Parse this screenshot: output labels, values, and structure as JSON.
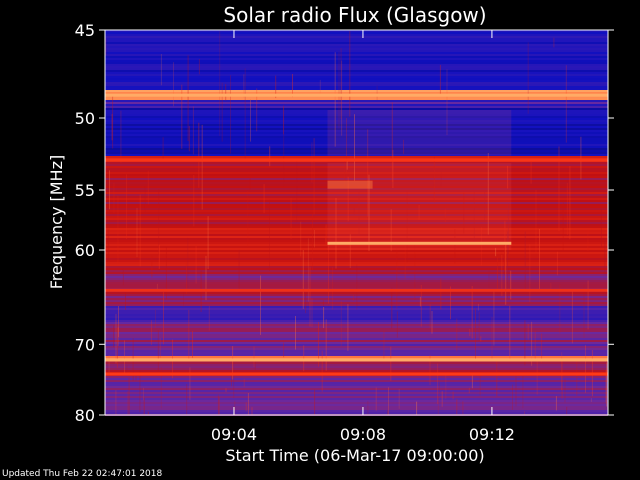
{
  "chart_data": {
    "type": "heatmap",
    "title": "Solar radio Flux (Glasgow)",
    "xlabel": "Start Time (06-Mar-17 09:00:00)",
    "ylabel": "Frequency [MHz]",
    "x_ticks": [
      {
        "label": "09:04",
        "minutes": 4
      },
      {
        "label": "09:08",
        "minutes": 8
      },
      {
        "label": "09:12",
        "minutes": 12
      }
    ],
    "xlim_minutes": [
      0,
      15.6
    ],
    "y_ticks": [
      45,
      50,
      55,
      60,
      70,
      80
    ],
    "ylim": [
      45,
      80
    ],
    "y_scale": "reciprocal",
    "colormap": [
      "#000000",
      "#1010c0",
      "#6a2aa0",
      "#c21010",
      "#ff3a18",
      "#ffd080"
    ],
    "bands": [
      {
        "f_start": 45.0,
        "f_end": 48.3,
        "level": 0.22,
        "var": 0.05
      },
      {
        "f_start": 48.3,
        "f_end": 48.9,
        "level": 0.92,
        "var": 0.03
      },
      {
        "f_start": 48.9,
        "f_end": 49.6,
        "level": 0.25,
        "var": 0.15
      },
      {
        "f_start": 49.6,
        "f_end": 52.5,
        "level": 0.2,
        "var": 0.04
      },
      {
        "f_start": 52.5,
        "f_end": 53.0,
        "level": 0.72,
        "var": 0.05
      },
      {
        "f_start": 53.0,
        "f_end": 58.0,
        "level": 0.58,
        "var": 0.08
      },
      {
        "f_start": 58.0,
        "f_end": 61.5,
        "level": 0.64,
        "var": 0.06
      },
      {
        "f_start": 61.5,
        "f_end": 65.5,
        "level": 0.5,
        "var": 0.09
      },
      {
        "f_start": 65.5,
        "f_end": 67.5,
        "level": 0.32,
        "var": 0.07
      },
      {
        "f_start": 67.5,
        "f_end": 71.5,
        "level": 0.44,
        "var": 0.1
      },
      {
        "f_start": 71.5,
        "f_end": 72.1,
        "level": 0.9,
        "var": 0.03
      },
      {
        "f_start": 72.1,
        "f_end": 73.5,
        "level": 0.5,
        "var": 0.08
      },
      {
        "f_start": 73.5,
        "f_end": 74.2,
        "level": 0.72,
        "var": 0.2
      },
      {
        "f_start": 74.2,
        "f_end": 80.0,
        "level": 0.4,
        "var": 0.08
      }
    ],
    "lines": [
      {
        "freq": 48.6,
        "level": 0.95,
        "t_start": 0,
        "t_end": 15.6
      },
      {
        "freq": 52.8,
        "level": 0.78,
        "t_start": 0,
        "t_end": 15.6
      },
      {
        "freq": 59.4,
        "level": 0.95,
        "t_start": 6.9,
        "t_end": 12.6
      },
      {
        "freq": 63.9,
        "level": 0.75,
        "t_start": 0,
        "t_end": 15.6
      },
      {
        "freq": 72.0,
        "level": 0.95,
        "t_start": 0,
        "t_end": 15.6
      },
      {
        "freq": 73.9,
        "level": 0.8,
        "t_start": 0,
        "t_end": 15.6
      }
    ],
    "regions": [
      {
        "t_start": 6.9,
        "t_end": 12.6,
        "f_start": 49.5,
        "f_end": 52.5,
        "delta": 0.08
      },
      {
        "t_start": 6.9,
        "t_end": 12.6,
        "f_start": 53.0,
        "f_end": 60.0,
        "delta": 0.08
      },
      {
        "t_start": 6.9,
        "t_end": 8.3,
        "f_start": 54.3,
        "f_end": 54.9,
        "delta": 0.28
      }
    ]
  },
  "footer": {
    "updated": "Updated Thu Feb 22 02:47:01 2018"
  }
}
